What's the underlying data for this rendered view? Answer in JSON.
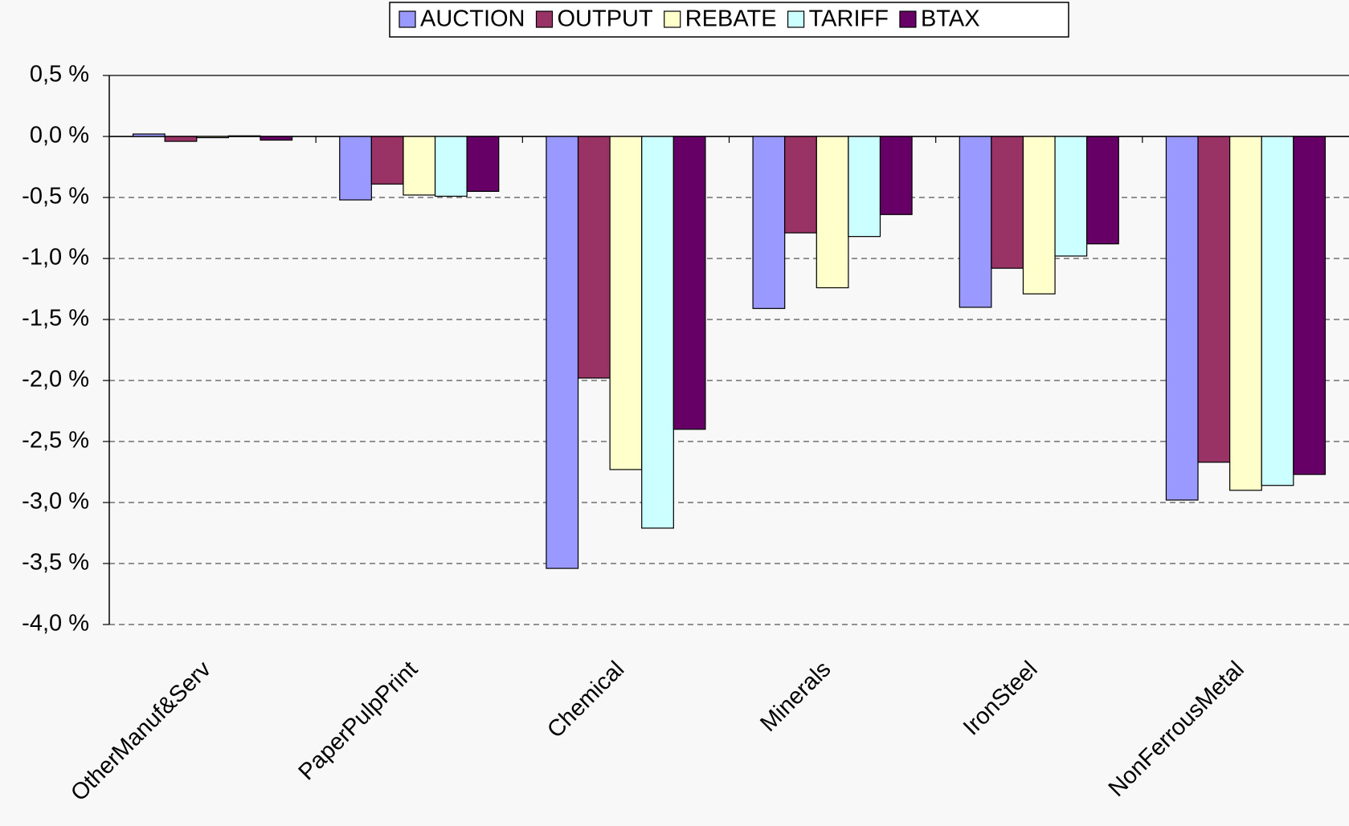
{
  "chart_data": {
    "type": "bar",
    "categories": [
      "OtherManuf&Serv",
      "PaperPulpPrint",
      "Chemical",
      "Minerals",
      "IronSteel",
      "NonFerrousMetal"
    ],
    "series": [
      {
        "name": "AUCTION",
        "color": "#9999ff",
        "values": [
          0.02,
          -0.52,
          -3.54,
          -1.41,
          -1.4,
          -2.98
        ]
      },
      {
        "name": "OUTPUT",
        "color": "#993366",
        "values": [
          -0.04,
          -0.39,
          -1.98,
          -0.79,
          -1.08,
          -2.67
        ]
      },
      {
        "name": "REBATE",
        "color": "#ffffcc",
        "values": [
          -0.01,
          -0.48,
          -2.73,
          -1.24,
          -1.29,
          -2.9
        ]
      },
      {
        "name": "TARIFF",
        "color": "#ccffff",
        "values": [
          0.005,
          -0.49,
          -3.21,
          -0.82,
          -0.98,
          -2.86
        ]
      },
      {
        "name": "BTAX",
        "color": "#660066",
        "values": [
          -0.03,
          -0.45,
          -2.4,
          -0.64,
          -0.88,
          -2.77
        ]
      }
    ],
    "ylim": [
      -4.0,
      0.5
    ],
    "yticks": [
      {
        "value": 0.5,
        "label": "0,5 %"
      },
      {
        "value": 0.0,
        "label": "0,0 %"
      },
      {
        "value": -0.5,
        "label": "-0,5 %"
      },
      {
        "value": -1.0,
        "label": "-1,0 %"
      },
      {
        "value": -1.5,
        "label": "-1,5 %"
      },
      {
        "value": -2.0,
        "label": "-2,0 %"
      },
      {
        "value": -2.5,
        "label": "-2,5 %"
      },
      {
        "value": -3.0,
        "label": "-3,0 %"
      },
      {
        "value": -3.5,
        "label": "-3,5 %"
      },
      {
        "value": -4.0,
        "label": "-4,0 %"
      }
    ],
    "grid": true,
    "legend": "top"
  }
}
